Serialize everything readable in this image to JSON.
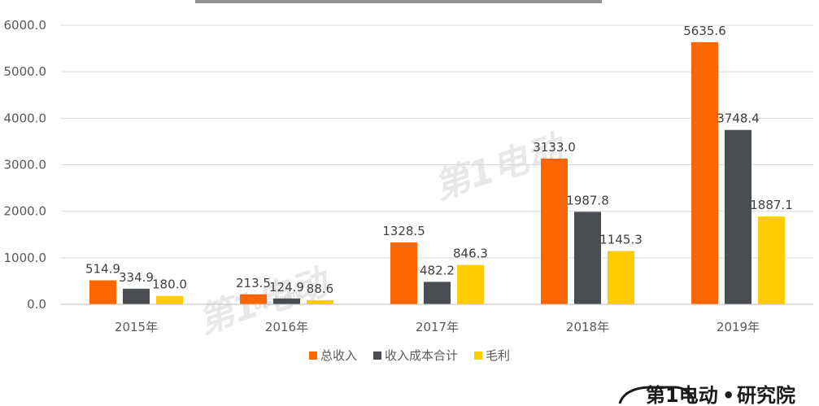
{
  "chart_data": {
    "type": "bar",
    "title": "",
    "categories": [
      "2015年",
      "2016年",
      "2017年",
      "2018年",
      "2019年"
    ],
    "series": [
      {
        "name": "总收入",
        "values": [
          514.9,
          213.5,
          1328.5,
          3133.0,
          5635.6
        ],
        "color": "#FF6600"
      },
      {
        "name": "收入成本合计",
        "values": [
          334.9,
          124.9,
          482.2,
          1987.8,
          3748.4
        ],
        "color": "#4A4E52"
      },
      {
        "name": "毛利",
        "values": [
          180.0,
          88.6,
          846.3,
          1145.3,
          1887.1
        ],
        "color": "#FFCC00"
      }
    ],
    "ylim": [
      0,
      6000
    ],
    "yticks": [
      "0.0",
      "1000.0",
      "2000.0",
      "3000.0",
      "4000.0",
      "5000.0",
      "6000.0"
    ],
    "grid": true,
    "legend_position": "bottom"
  },
  "brand": {
    "logo_text": "第1电动",
    "separator": "•",
    "org_text": "研究院"
  },
  "watermark": {
    "text": "第1电动",
    "sub_text": "D1EV.com"
  },
  "colors": {
    "grid": "#D9D9D9",
    "axis": "#BFBFBF",
    "brand_accent": "#FF6600"
  }
}
